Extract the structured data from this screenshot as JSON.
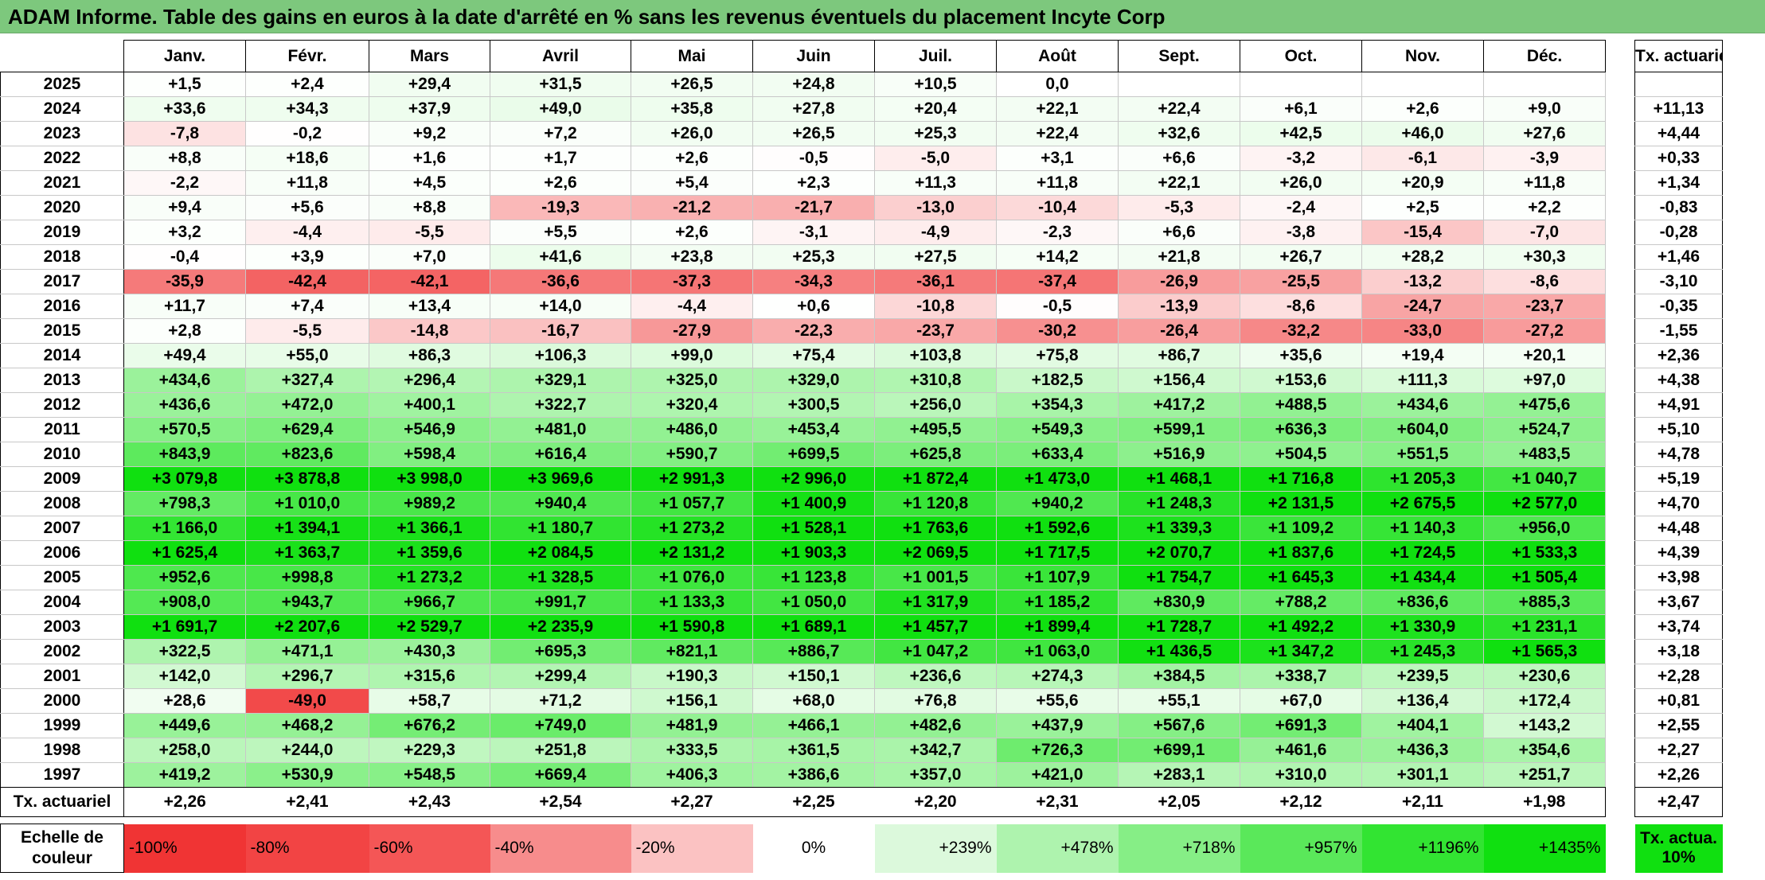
{
  "title": "ADAM Informe. Table des gains en euros à la date d'arrêté en % sans les revenus éventuels du placement Incyte Corp",
  "chart_data": {
    "type": "table",
    "months": [
      "Janv.",
      "Févr.",
      "Mars",
      "Avril",
      "Mai",
      "Juin",
      "Juil.",
      "Août",
      "Sept.",
      "Oct.",
      "Nov.",
      "Déc."
    ],
    "rate_header": "Tx. actuariel",
    "rows": [
      {
        "year": "2025",
        "values": [
          "+1,5",
          "+2,4",
          "+29,4",
          "+31,5",
          "+26,5",
          "+24,8",
          "+10,5",
          "0,0",
          "",
          "",
          "",
          ""
        ],
        "rate": ""
      },
      {
        "year": "2024",
        "values": [
          "+33,6",
          "+34,3",
          "+37,9",
          "+49,0",
          "+35,8",
          "+27,8",
          "+20,4",
          "+22,1",
          "+22,4",
          "+6,1",
          "+2,6",
          "+9,0"
        ],
        "rate": "+11,13"
      },
      {
        "year": "2023",
        "values": [
          "-7,8",
          "-0,2",
          "+9,2",
          "+7,2",
          "+26,0",
          "+26,5",
          "+25,3",
          "+22,4",
          "+32,6",
          "+42,5",
          "+46,0",
          "+27,6"
        ],
        "rate": "+4,44"
      },
      {
        "year": "2022",
        "values": [
          "+8,8",
          "+18,6",
          "+1,6",
          "+1,7",
          "+2,6",
          "-0,5",
          "-5,0",
          "+3,1",
          "+6,6",
          "-3,2",
          "-6,1",
          "-3,9"
        ],
        "rate": "+0,33"
      },
      {
        "year": "2021",
        "values": [
          "-2,2",
          "+11,8",
          "+4,5",
          "+2,6",
          "+5,4",
          "+2,3",
          "+11,3",
          "+11,8",
          "+22,1",
          "+26,0",
          "+20,9",
          "+11,8"
        ],
        "rate": "+1,34"
      },
      {
        "year": "2020",
        "values": [
          "+9,4",
          "+5,6",
          "+8,8",
          "-19,3",
          "-21,2",
          "-21,7",
          "-13,0",
          "-10,4",
          "-5,3",
          "-2,4",
          "+2,5",
          "+2,2"
        ],
        "rate": "-0,83"
      },
      {
        "year": "2019",
        "values": [
          "+3,2",
          "-4,4",
          "-5,5",
          "+5,5",
          "+2,6",
          "-3,1",
          "-4,9",
          "-2,3",
          "+6,6",
          "-3,8",
          "-15,4",
          "-7,0"
        ],
        "rate": "-0,28"
      },
      {
        "year": "2018",
        "values": [
          "-0,4",
          "+3,9",
          "+7,0",
          "+41,6",
          "+23,8",
          "+25,3",
          "+27,5",
          "+14,2",
          "+21,8",
          "+26,7",
          "+28,2",
          "+30,3"
        ],
        "rate": "+1,46"
      },
      {
        "year": "2017",
        "values": [
          "-35,9",
          "-42,4",
          "-42,1",
          "-36,6",
          "-37,3",
          "-34,3",
          "-36,1",
          "-37,4",
          "-26,9",
          "-25,5",
          "-13,2",
          "-8,6"
        ],
        "rate": "-3,10"
      },
      {
        "year": "2016",
        "values": [
          "+11,7",
          "+7,4",
          "+13,4",
          "+14,0",
          "-4,4",
          "+0,6",
          "-10,8",
          "-0,5",
          "-13,9",
          "-8,6",
          "-24,7",
          "-23,7"
        ],
        "rate": "-0,35"
      },
      {
        "year": "2015",
        "values": [
          "+2,8",
          "-5,5",
          "-14,8",
          "-16,7",
          "-27,9",
          "-22,3",
          "-23,7",
          "-30,2",
          "-26,4",
          "-32,2",
          "-33,0",
          "-27,2"
        ],
        "rate": "-1,55"
      },
      {
        "year": "2014",
        "values": [
          "+49,4",
          "+55,0",
          "+86,3",
          "+106,3",
          "+99,0",
          "+75,4",
          "+103,8",
          "+75,8",
          "+86,7",
          "+35,6",
          "+19,4",
          "+20,1"
        ],
        "rate": "+2,36"
      },
      {
        "year": "2013",
        "values": [
          "+434,6",
          "+327,4",
          "+296,4",
          "+329,1",
          "+325,0",
          "+329,0",
          "+310,8",
          "+182,5",
          "+156,4",
          "+153,6",
          "+111,3",
          "+97,0"
        ],
        "rate": "+4,38"
      },
      {
        "year": "2012",
        "values": [
          "+436,6",
          "+472,0",
          "+400,1",
          "+322,7",
          "+320,4",
          "+300,5",
          "+256,0",
          "+354,3",
          "+417,2",
          "+488,5",
          "+434,6",
          "+475,6"
        ],
        "rate": "+4,91"
      },
      {
        "year": "2011",
        "values": [
          "+570,5",
          "+629,4",
          "+546,9",
          "+481,0",
          "+486,0",
          "+453,4",
          "+495,5",
          "+549,3",
          "+599,1",
          "+636,3",
          "+604,0",
          "+524,7"
        ],
        "rate": "+5,10"
      },
      {
        "year": "2010",
        "values": [
          "+843,9",
          "+823,6",
          "+598,4",
          "+616,4",
          "+590,7",
          "+699,5",
          "+625,8",
          "+633,4",
          "+516,9",
          "+504,5",
          "+551,5",
          "+483,5"
        ],
        "rate": "+4,78"
      },
      {
        "year": "2009",
        "values": [
          "+3 079,8",
          "+3 878,8",
          "+3 998,0",
          "+3 969,6",
          "+2 991,3",
          "+2 996,0",
          "+1 872,4",
          "+1 473,0",
          "+1 468,1",
          "+1 716,8",
          "+1 205,3",
          "+1 040,7"
        ],
        "rate": "+5,19"
      },
      {
        "year": "2008",
        "values": [
          "+798,3",
          "+1 010,0",
          "+989,2",
          "+940,4",
          "+1 057,7",
          "+1 400,9",
          "+1 120,8",
          "+940,2",
          "+1 248,3",
          "+2 131,5",
          "+2 675,5",
          "+2 577,0"
        ],
        "rate": "+4,70"
      },
      {
        "year": "2007",
        "values": [
          "+1 166,0",
          "+1 394,1",
          "+1 366,1",
          "+1 180,7",
          "+1 273,2",
          "+1 528,1",
          "+1 763,6",
          "+1 592,6",
          "+1 339,3",
          "+1 109,2",
          "+1 140,3",
          "+956,0"
        ],
        "rate": "+4,48"
      },
      {
        "year": "2006",
        "values": [
          "+1 625,4",
          "+1 363,7",
          "+1 359,6",
          "+2 084,5",
          "+2 131,2",
          "+1 903,3",
          "+2 069,5",
          "+1 717,5",
          "+2 070,7",
          "+1 837,6",
          "+1 724,5",
          "+1 533,3"
        ],
        "rate": "+4,39"
      },
      {
        "year": "2005",
        "values": [
          "+952,6",
          "+998,8",
          "+1 273,2",
          "+1 328,5",
          "+1 076,0",
          "+1 123,8",
          "+1 001,5",
          "+1 107,9",
          "+1 754,7",
          "+1 645,3",
          "+1 434,4",
          "+1 505,4"
        ],
        "rate": "+3,98"
      },
      {
        "year": "2004",
        "values": [
          "+908,0",
          "+943,7",
          "+966,7",
          "+991,7",
          "+1 133,3",
          "+1 050,0",
          "+1 317,9",
          "+1 185,2",
          "+830,9",
          "+788,2",
          "+836,6",
          "+885,3"
        ],
        "rate": "+3,67"
      },
      {
        "year": "2003",
        "values": [
          "+1 691,7",
          "+2 207,6",
          "+2 529,7",
          "+2 235,9",
          "+1 590,8",
          "+1 689,1",
          "+1 457,7",
          "+1 899,4",
          "+1 728,7",
          "+1 492,2",
          "+1 330,9",
          "+1 231,1"
        ],
        "rate": "+3,74"
      },
      {
        "year": "2002",
        "values": [
          "+322,5",
          "+471,1",
          "+430,3",
          "+695,3",
          "+821,1",
          "+886,7",
          "+1 047,2",
          "+1 063,0",
          "+1 436,5",
          "+1 347,2",
          "+1 245,3",
          "+1 565,3"
        ],
        "rate": "+3,18"
      },
      {
        "year": "2001",
        "values": [
          "+142,0",
          "+296,7",
          "+315,6",
          "+299,4",
          "+190,3",
          "+150,1",
          "+236,6",
          "+274,3",
          "+384,5",
          "+338,7",
          "+239,5",
          "+230,6"
        ],
        "rate": "+2,28"
      },
      {
        "year": "2000",
        "values": [
          "+28,6",
          "-49,0",
          "+58,7",
          "+71,2",
          "+156,1",
          "+68,0",
          "+76,8",
          "+55,6",
          "+55,1",
          "+67,0",
          "+136,4",
          "+172,4"
        ],
        "rate": "+0,81"
      },
      {
        "year": "1999",
        "values": [
          "+449,6",
          "+468,2",
          "+676,2",
          "+749,0",
          "+481,9",
          "+466,1",
          "+482,6",
          "+437,9",
          "+567,6",
          "+691,3",
          "+404,1",
          "+143,2"
        ],
        "rate": "+2,55"
      },
      {
        "year": "1998",
        "values": [
          "+258,0",
          "+244,0",
          "+229,3",
          "+251,8",
          "+333,5",
          "+361,5",
          "+342,7",
          "+726,3",
          "+699,1",
          "+461,6",
          "+436,3",
          "+354,6"
        ],
        "rate": "+2,27"
      },
      {
        "year": "1997",
        "values": [
          "+419,2",
          "+530,9",
          "+548,5",
          "+669,4",
          "+406,3",
          "+386,6",
          "+357,0",
          "+421,0",
          "+283,1",
          "+310,0",
          "+301,1",
          "+251,7"
        ],
        "rate": "+2,26"
      }
    ],
    "annual_row": {
      "label": "Tx. actuariel",
      "values": [
        "+2,26",
        "+2,41",
        "+2,43",
        "+2,54",
        "+2,27",
        "+2,25",
        "+2,20",
        "+2,31",
        "+2,05",
        "+2,12",
        "+2,11",
        "+1,98"
      ],
      "rate": "+2,47"
    },
    "color_scale": {
      "label": "Echelle de couleur",
      "stops": [
        {
          "label": "-100%",
          "color": "#f03434",
          "align": "left"
        },
        {
          "label": "-80%",
          "color": "#f24444",
          "align": "left"
        },
        {
          "label": "-60%",
          "color": "#f45656",
          "align": "left"
        },
        {
          "label": "-40%",
          "color": "#f78c8c",
          "align": "left"
        },
        {
          "label": "-20%",
          "color": "#fbc2c2",
          "align": "left"
        },
        {
          "label": "0%",
          "color": "#ffffff",
          "align": "center"
        },
        {
          "label": "+239%",
          "color": "#dcf9dc",
          "align": "right"
        },
        {
          "label": "+478%",
          "color": "#aef3ae",
          "align": "right"
        },
        {
          "label": "+718%",
          "color": "#86ee86",
          "align": "right"
        },
        {
          "label": "+957%",
          "color": "#5ae85a",
          "align": "right"
        },
        {
          "label": "+1196%",
          "color": "#32e432",
          "align": "right"
        },
        {
          "label": "+1435%",
          "color": "#10e010",
          "align": "right"
        }
      ],
      "rate_swatch": {
        "label": "Tx. actua. 10%",
        "color": "#10e010"
      }
    }
  }
}
